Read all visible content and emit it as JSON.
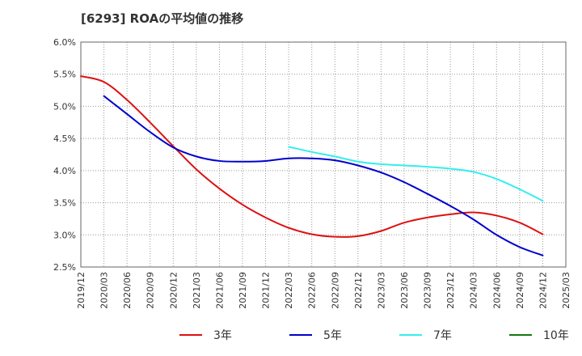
{
  "chart_data": {
    "type": "line",
    "title": "[6293]  ROAの平均値の推移",
    "xlabel": "",
    "ylabel": "",
    "ylim": [
      2.5,
      6.0
    ],
    "y_ticks": [
      "6.0%",
      "5.5%",
      "5.0%",
      "4.5%",
      "4.0%",
      "3.5%",
      "3.0%",
      "2.5%"
    ],
    "x_ticks": [
      "2019/12",
      "2020/03",
      "2020/06",
      "2020/09",
      "2020/12",
      "2021/03",
      "2021/06",
      "2021/09",
      "2021/12",
      "2022/03",
      "2022/06",
      "2022/09",
      "2022/12",
      "2023/03",
      "2023/06",
      "2023/09",
      "2023/12",
      "2024/03",
      "2024/06",
      "2024/09",
      "2024/12",
      "2025/03"
    ],
    "grid": true,
    "legend_position": "bottom",
    "series": [
      {
        "name": "3年",
        "color": "#dd1111",
        "points": [
          [
            "2019/12",
            5.47
          ],
          [
            "2020/03",
            5.38
          ],
          [
            "2020/06",
            5.1
          ],
          [
            "2020/09",
            4.75
          ],
          [
            "2020/12",
            4.38
          ],
          [
            "2021/03",
            4.02
          ],
          [
            "2021/06",
            3.72
          ],
          [
            "2021/09",
            3.47
          ],
          [
            "2021/12",
            3.27
          ],
          [
            "2022/03",
            3.11
          ],
          [
            "2022/06",
            3.01
          ],
          [
            "2022/09",
            2.97
          ],
          [
            "2022/12",
            2.98
          ],
          [
            "2023/03",
            3.06
          ],
          [
            "2023/06",
            3.19
          ],
          [
            "2023/09",
            3.27
          ],
          [
            "2023/12",
            3.32
          ],
          [
            "2024/03",
            3.35
          ],
          [
            "2024/06",
            3.3
          ],
          [
            "2024/09",
            3.19
          ],
          [
            "2024/12",
            3.01
          ]
        ]
      },
      {
        "name": "5年",
        "color": "#0000cc",
        "points": [
          [
            "2020/03",
            5.16
          ],
          [
            "2020/06",
            4.88
          ],
          [
            "2020/09",
            4.6
          ],
          [
            "2020/12",
            4.36
          ],
          [
            "2021/03",
            4.22
          ],
          [
            "2021/06",
            4.15
          ],
          [
            "2021/09",
            4.14
          ],
          [
            "2021/12",
            4.15
          ],
          [
            "2022/03",
            4.19
          ],
          [
            "2022/06",
            4.19
          ],
          [
            "2022/09",
            4.16
          ],
          [
            "2022/12",
            4.08
          ],
          [
            "2023/03",
            3.97
          ],
          [
            "2023/06",
            3.82
          ],
          [
            "2023/09",
            3.64
          ],
          [
            "2023/12",
            3.45
          ],
          [
            "2024/03",
            3.24
          ],
          [
            "2024/06",
            3.0
          ],
          [
            "2024/09",
            2.81
          ],
          [
            "2024/12",
            2.68
          ]
        ]
      },
      {
        "name": "7年",
        "color": "#33eeee",
        "points": [
          [
            "2022/03",
            4.37
          ],
          [
            "2022/06",
            4.29
          ],
          [
            "2022/09",
            4.22
          ],
          [
            "2022/12",
            4.14
          ],
          [
            "2023/03",
            4.1
          ],
          [
            "2023/06",
            4.08
          ],
          [
            "2023/09",
            4.06
          ],
          [
            "2023/12",
            4.03
          ],
          [
            "2024/03",
            3.98
          ],
          [
            "2024/06",
            3.87
          ],
          [
            "2024/09",
            3.71
          ],
          [
            "2024/12",
            3.53
          ]
        ]
      },
      {
        "name": "10年",
        "color": "#117711",
        "points": []
      }
    ]
  }
}
